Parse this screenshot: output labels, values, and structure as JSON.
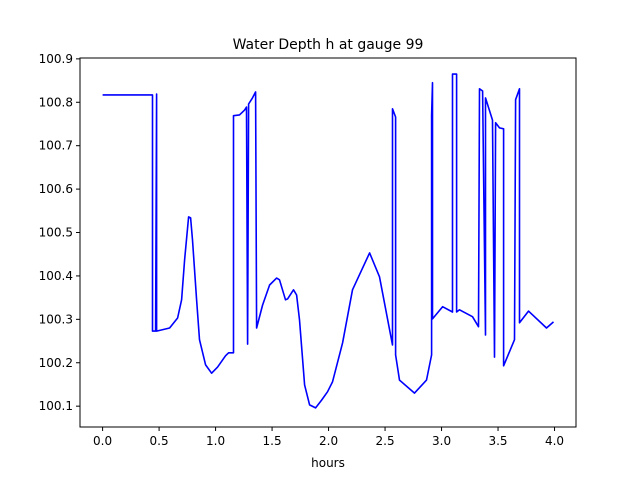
{
  "chart_data": {
    "type": "line",
    "title": "Water Depth h at gauge 99",
    "xlabel": "hours",
    "ylabel": "",
    "xlim": [
      -0.2,
      4.19
    ],
    "ylim": [
      100.052,
      100.902
    ],
    "xticks": [
      0.0,
      0.5,
      1.0,
      1.5,
      2.0,
      2.5,
      3.0,
      3.5,
      4.0
    ],
    "xtick_labels": [
      "0.0",
      "0.5",
      "1.0",
      "1.5",
      "2.0",
      "2.5",
      "3.0",
      "3.5",
      "4.0"
    ],
    "yticks": [
      100.1,
      100.2,
      100.3,
      100.4,
      100.5,
      100.6,
      100.7,
      100.8,
      100.9
    ],
    "ytick_labels": [
      "100.1",
      "100.2",
      "100.3",
      "100.4",
      "100.5",
      "100.6",
      "100.7",
      "100.8",
      "100.9"
    ],
    "grid": false,
    "series": [
      {
        "name": "h",
        "color": "#0000ff",
        "x": [
          0.0,
          0.442,
          0.442,
          0.469,
          0.478,
          0.478,
          0.593,
          0.664,
          0.699,
          0.726,
          0.761,
          0.779,
          0.796,
          0.832,
          0.858,
          0.912,
          0.965,
          1.018,
          1.088,
          1.115,
          1.159,
          1.159,
          1.212,
          1.257,
          1.274,
          1.283,
          1.292,
          1.327,
          1.354,
          1.363,
          1.416,
          1.478,
          1.54,
          1.566,
          1.619,
          1.637,
          1.69,
          1.717,
          1.743,
          1.788,
          1.832,
          1.885,
          1.938,
          1.991,
          2.035,
          2.124,
          2.212,
          2.363,
          2.451,
          2.566,
          2.566,
          2.593,
          2.593,
          2.628,
          2.761,
          2.867,
          2.912,
          2.912,
          2.92,
          2.92,
          3.009,
          3.097,
          3.097,
          3.133,
          3.133,
          3.159,
          3.274,
          3.327,
          3.336,
          3.363,
          3.389,
          3.389,
          3.451,
          3.469,
          3.478,
          3.513,
          3.549,
          3.549,
          3.646,
          3.655,
          3.69,
          3.69,
          3.77,
          3.929,
          3.991
        ],
        "y": [
          100.817,
          100.817,
          100.273,
          100.273,
          100.819,
          100.273,
          100.28,
          100.303,
          100.345,
          100.437,
          100.536,
          100.534,
          100.483,
          100.345,
          100.253,
          100.195,
          100.176,
          100.19,
          100.216,
          100.223,
          100.223,
          100.769,
          100.771,
          100.782,
          100.789,
          100.243,
          100.796,
          100.81,
          100.824,
          100.28,
          100.333,
          100.379,
          100.395,
          100.391,
          100.345,
          100.347,
          100.368,
          100.356,
          100.299,
          100.149,
          100.103,
          100.096,
          100.114,
          100.133,
          100.156,
          100.246,
          100.368,
          100.453,
          100.398,
          100.241,
          100.785,
          100.766,
          100.218,
          100.16,
          100.13,
          100.16,
          100.218,
          100.769,
          100.845,
          100.301,
          100.329,
          100.317,
          100.865,
          100.865,
          100.317,
          100.322,
          100.306,
          100.283,
          100.831,
          100.826,
          100.264,
          100.81,
          100.759,
          100.213,
          100.753,
          100.741,
          100.739,
          100.193,
          100.253,
          100.806,
          100.831,
          100.292,
          100.319,
          100.28,
          100.294
        ]
      }
    ]
  }
}
